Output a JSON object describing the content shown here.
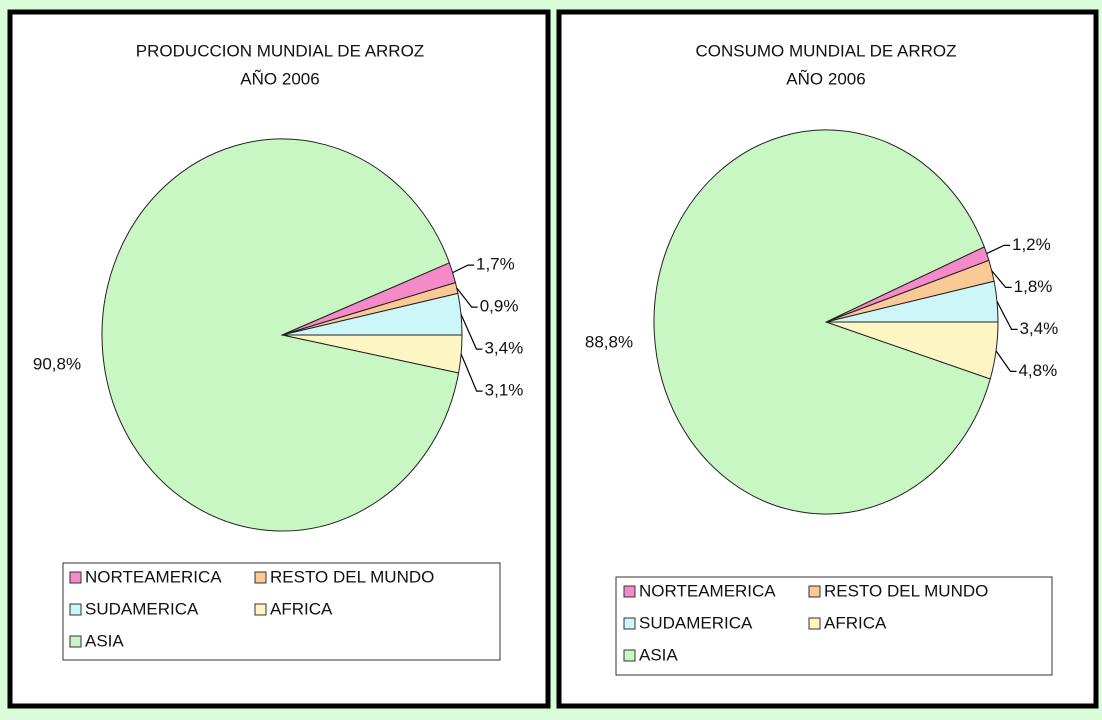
{
  "chart_data": [
    {
      "type": "pie",
      "title": "PRODUCCION MUNDIAL DE ARROZ",
      "subtitle": "AÑO 2006",
      "categories": [
        "NORTEAMERICA",
        "RESTO DEL MUNDO",
        "SUDAMERICA",
        "AFRICA",
        "ASIA"
      ],
      "values": [
        1.7,
        0.9,
        3.4,
        3.1,
        90.8
      ],
      "value_labels": [
        "1,7%",
        "0,9%",
        "3,4%",
        "3,1%",
        "90,8%"
      ],
      "colors": [
        "#f58ac8",
        "#f9c996",
        "#ccf6f8",
        "#fdf6c4",
        "#c8f7c4"
      ]
    },
    {
      "type": "pie",
      "title": "CONSUMO MUNDIAL DE ARROZ",
      "subtitle": "AÑO 2006",
      "categories": [
        "NORTEAMERICA",
        "RESTO DEL MUNDO",
        "SUDAMERICA",
        "AFRICA",
        "ASIA"
      ],
      "values": [
        1.2,
        1.8,
        3.4,
        4.8,
        88.8
      ],
      "value_labels": [
        "1,2%",
        "1,8%",
        "3,4%",
        "4,8%",
        "88,8%"
      ],
      "colors": [
        "#f58ac8",
        "#f9c996",
        "#ccf6f8",
        "#fdf6c4",
        "#c8f7c4"
      ]
    }
  ]
}
